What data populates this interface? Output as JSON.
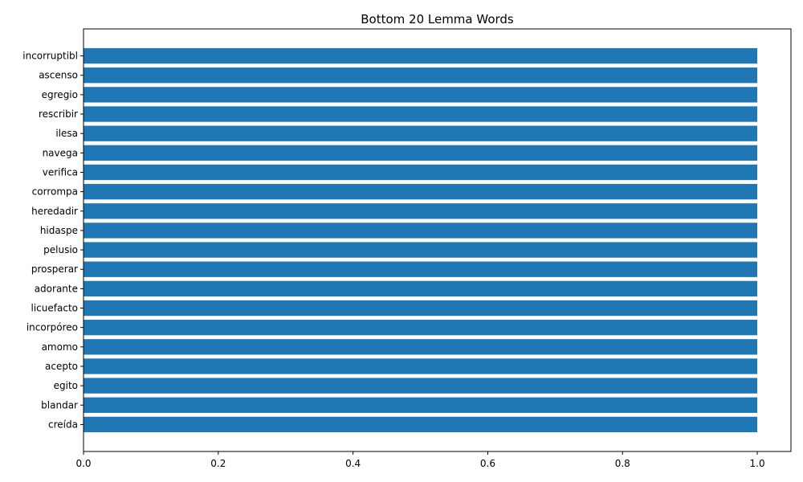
{
  "chart_data": {
    "type": "bar",
    "orientation": "horizontal",
    "title": "Bottom 20 Lemma Words",
    "xlabel": "",
    "ylabel": "",
    "categories": [
      "incorruptibl",
      "ascenso",
      "egregio",
      "rescribir",
      "ilesa",
      "navega",
      "verifica",
      "corrompa",
      "heredadir",
      "hidaspe",
      "pelusio",
      "prosperar",
      "adorante",
      "licuefacto",
      "incorpóreo",
      "amomo",
      "acepto",
      "egito",
      "blandar",
      "creída"
    ],
    "values": [
      1,
      1,
      1,
      1,
      1,
      1,
      1,
      1,
      1,
      1,
      1,
      1,
      1,
      1,
      1,
      1,
      1,
      1,
      1,
      1
    ],
    "xlim": [
      0,
      1.05
    ],
    "xticks": [
      "0.0",
      "0.2",
      "0.4",
      "0.6",
      "0.8",
      "1.0"
    ],
    "grid": false,
    "bar_color": "#1f77b4"
  }
}
